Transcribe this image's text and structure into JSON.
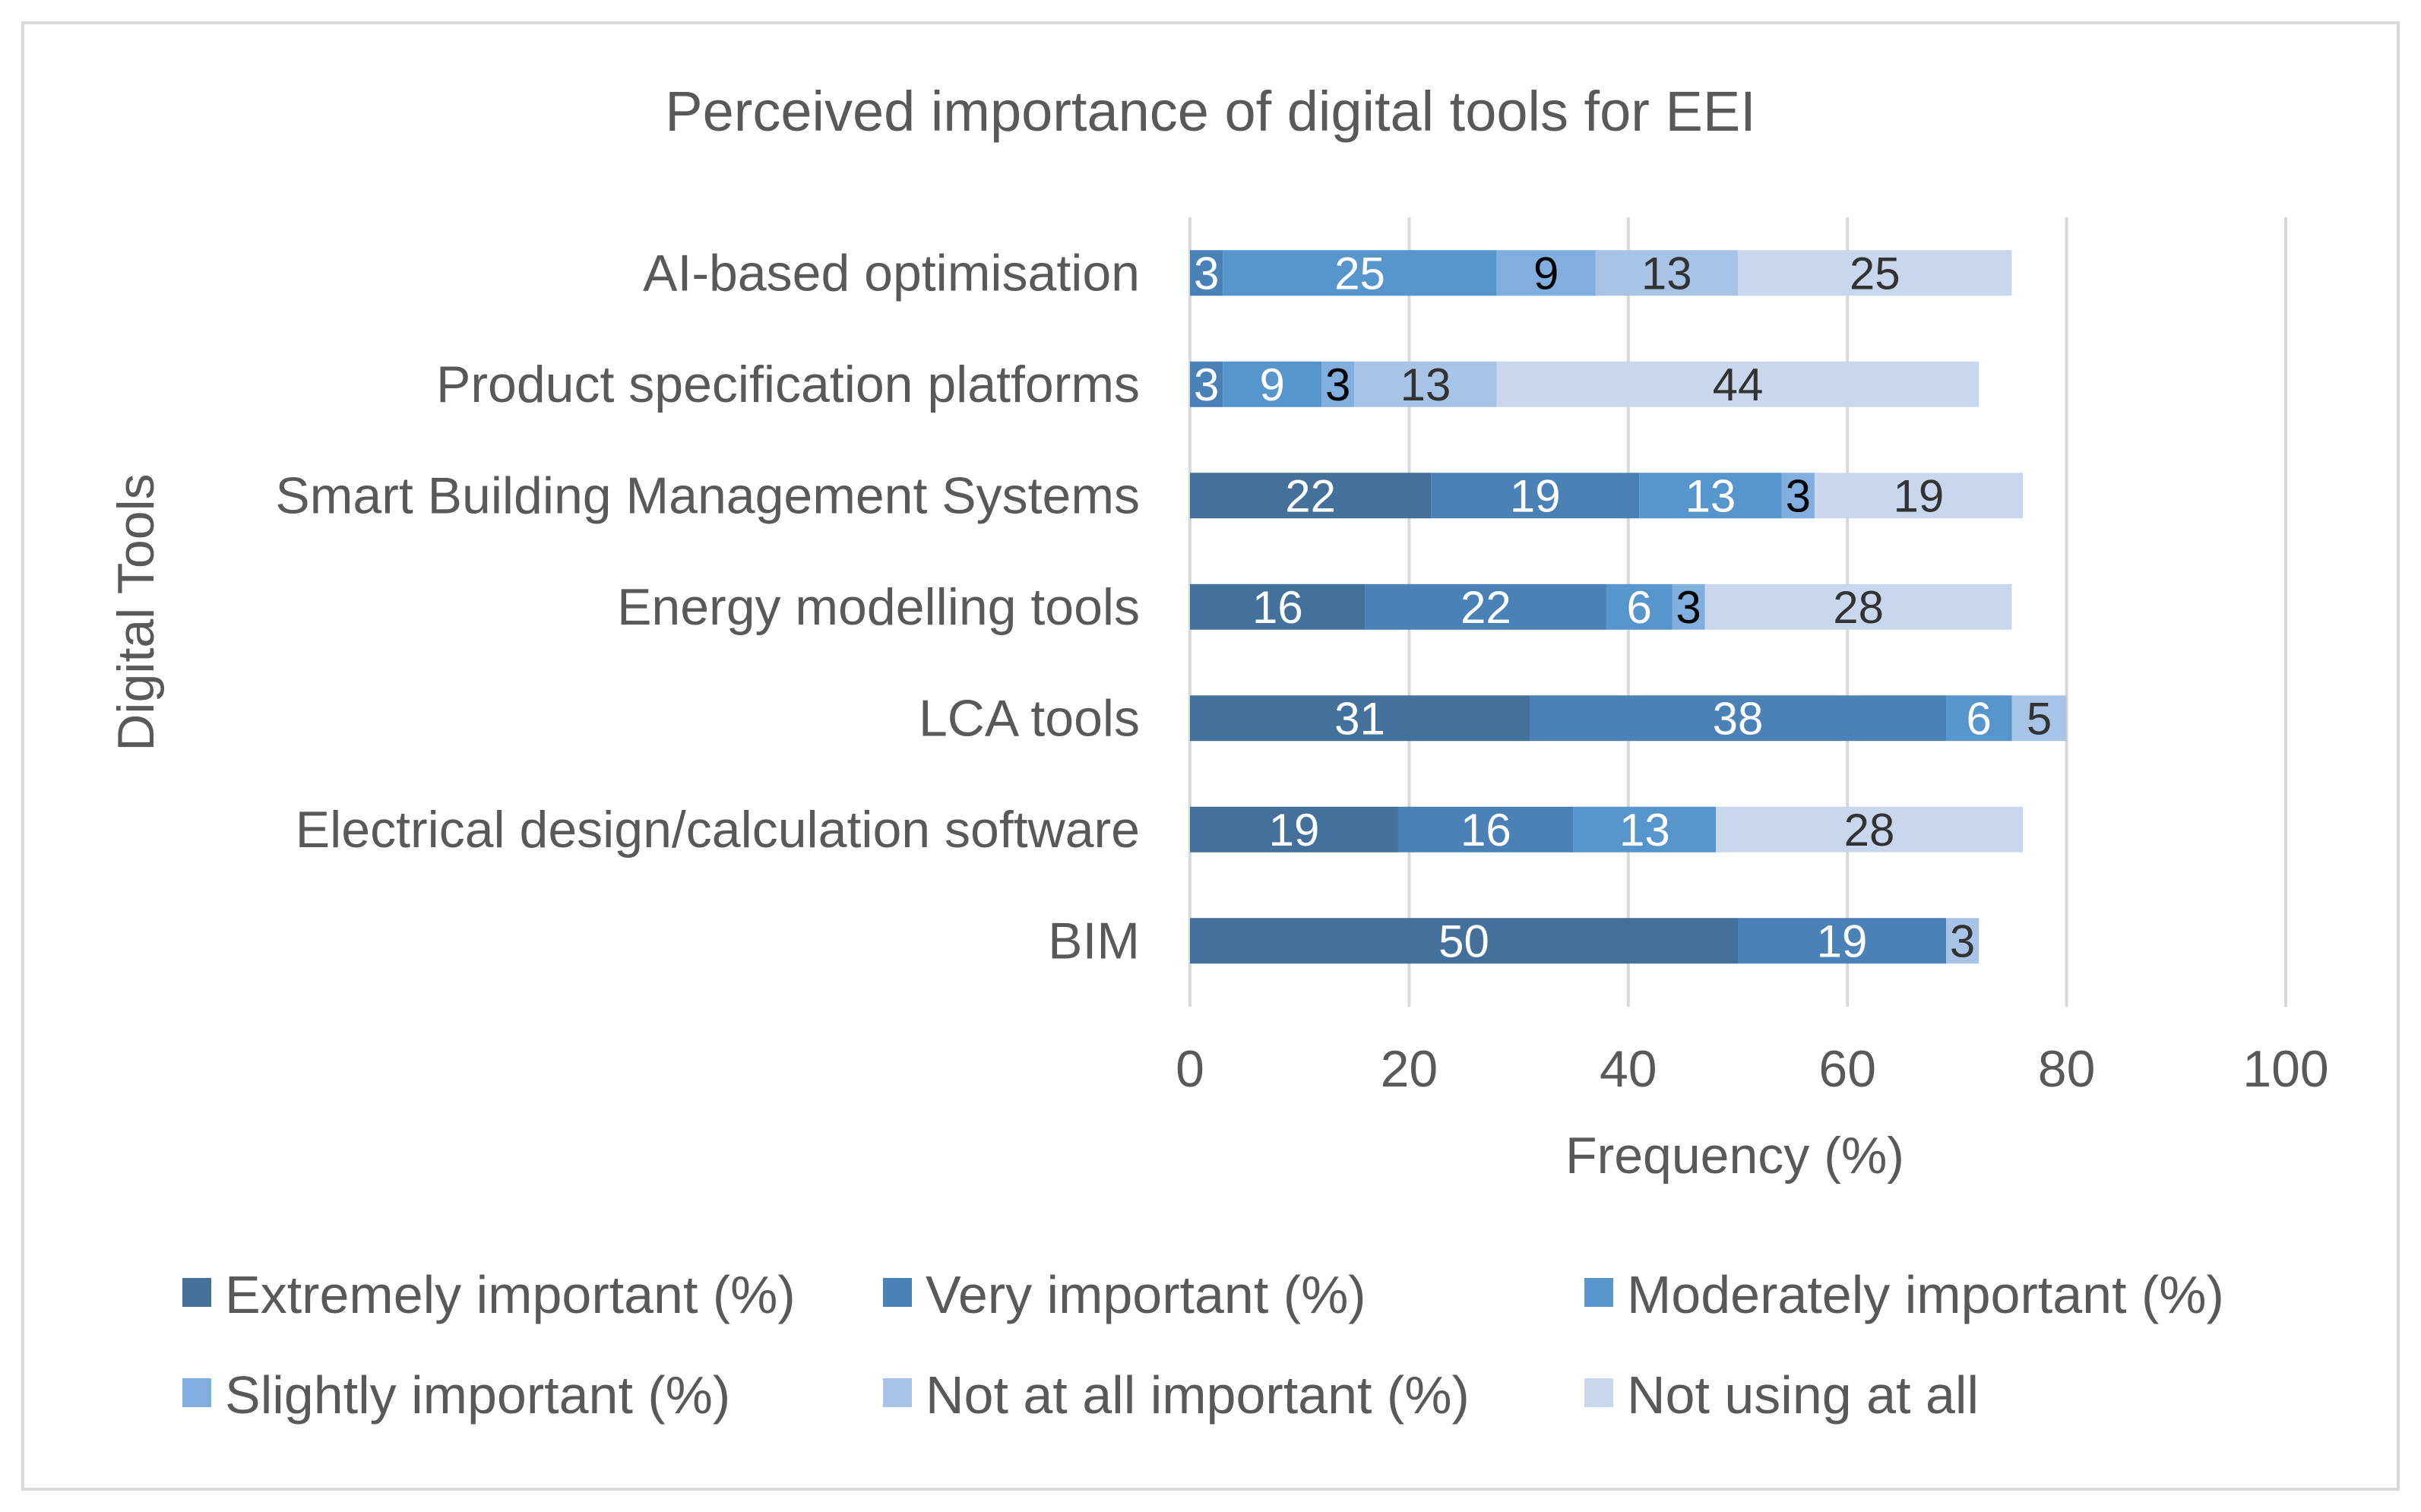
{
  "chart_data": {
    "type": "bar",
    "orientation": "horizontal",
    "stacked": true,
    "title": "Perceived importance of digital tools for EEI",
    "xlabel": "Frequency (%)",
    "ylabel": "Digital Tools",
    "xlim": [
      0,
      100
    ],
    "xticks": [
      "0",
      "20",
      "40",
      "60",
      "80",
      "100"
    ],
    "grid": "vertical",
    "legend_position": "bottom",
    "categories": [
      "AI-based optimisation",
      "Product specification platforms",
      "Smart Building Management Systems",
      "Energy modelling tools",
      "LCA tools",
      "Electrical design/calculation software",
      "BIM"
    ],
    "series": [
      {
        "name": "Extremely important (%)",
        "color": "#44709c",
        "label_color": "#ffffff",
        "values": [
          null,
          null,
          22,
          16,
          31,
          19,
          50
        ]
      },
      {
        "name": "Very important (%)",
        "color": "#4a81b6",
        "label_color": "#ffffff",
        "values": [
          3,
          3,
          19,
          22,
          38,
          16,
          19
        ]
      },
      {
        "name": "Moderately important (%)",
        "color": "#5795cd",
        "label_color": "#ffffff",
        "values": [
          25,
          9,
          13,
          6,
          6,
          13,
          null
        ]
      },
      {
        "name": "Slightly important (%)",
        "color": "#80aede",
        "label_color": "#000000",
        "values": [
          9,
          3,
          3,
          3,
          null,
          null,
          null
        ]
      },
      {
        "name": "Not at all important (%)",
        "color": "#a7c3e5",
        "label_color": "#333333",
        "values": [
          13,
          13,
          null,
          null,
          5,
          null,
          3
        ]
      },
      {
        "name": "Not using at all",
        "color": "#c8d7ed",
        "label_color": "#333333",
        "values": [
          25,
          44,
          19,
          28,
          null,
          28,
          null
        ]
      }
    ]
  }
}
